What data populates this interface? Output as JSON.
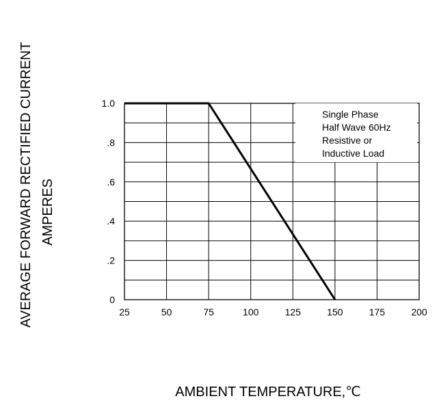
{
  "chart_data": {
    "type": "line",
    "title": "",
    "xlabel": "AMBIENT TEMPERATURE,℃",
    "ylabel_lines": [
      "AVERAGE FORWARD RECTIFIED CURRENT",
      "AMPERES"
    ],
    "x_ticks": [
      "25",
      "50",
      "75",
      "100",
      "125",
      "150",
      "175",
      "200"
    ],
    "y_ticks": [
      "0",
      ".2",
      ".4",
      ".6",
      ".8",
      "1.0"
    ],
    "xlim": [
      25,
      200
    ],
    "ylim": [
      0,
      1.0
    ],
    "grid": true,
    "series": [
      {
        "x": [
          25,
          75,
          150
        ],
        "y": [
          1.0,
          1.0,
          0
        ]
      }
    ],
    "annotation_lines": [
      "Single Phase",
      "Half Wave 60Hz",
      "Resistive or",
      "Inductive Load"
    ],
    "line_color": "#000000"
  }
}
